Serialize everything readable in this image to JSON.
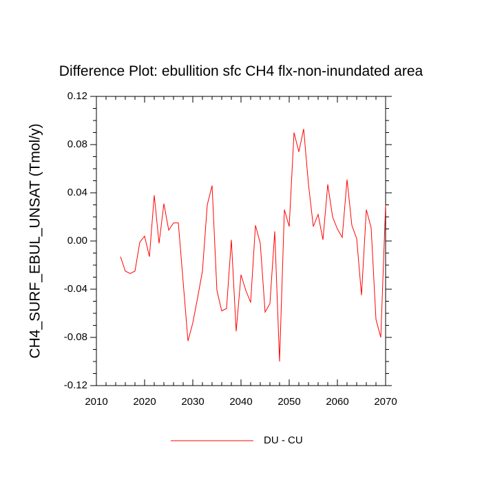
{
  "chart_data": {
    "type": "line",
    "title": "Difference Plot: ebullition sfc CH4 flx-non-inundated area",
    "xlabel": "",
    "ylabel": "CH4_SURF_EBUL_UNSAT  (Tmol/y)",
    "xlim": [
      2010,
      2070
    ],
    "ylim": [
      -0.12,
      0.12
    ],
    "x_ticks": [
      2010,
      2020,
      2030,
      2040,
      2050,
      2060,
      2070
    ],
    "x_tick_labels": [
      "2010",
      "2020",
      "2030",
      "2040",
      "2050",
      "2060",
      "2070"
    ],
    "y_ticks": [
      -0.12,
      -0.08,
      -0.04,
      0.0,
      0.04,
      0.08,
      0.12
    ],
    "y_tick_labels": [
      "-0.12",
      "-0.08",
      "-0.04",
      "0.00",
      "0.04",
      "0.08",
      "0.12"
    ],
    "x_minor_step": 2,
    "y_minor_step": 0.01,
    "legend_position": "bottom-center",
    "series": [
      {
        "name": "DU - CU",
        "color": "#ff0000",
        "x": [
          2015,
          2016,
          2017,
          2018,
          2019,
          2020,
          2021,
          2022,
          2023,
          2024,
          2025,
          2026,
          2027,
          2028,
          2029,
          2030,
          2031,
          2032,
          2033,
          2034,
          2035,
          2036,
          2037,
          2038,
          2039,
          2040,
          2041,
          2042,
          2043,
          2044,
          2045,
          2046,
          2047,
          2048,
          2049,
          2050,
          2051,
          2052,
          2053,
          2054,
          2055,
          2056,
          2057,
          2058,
          2059,
          2060,
          2061,
          2062,
          2063,
          2064,
          2065,
          2066,
          2067,
          2068,
          2069,
          2070
        ],
        "values": [
          -0.013,
          -0.025,
          -0.027,
          -0.025,
          -0.001,
          0.004,
          -0.013,
          0.038,
          -0.002,
          0.031,
          0.009,
          0.015,
          0.015,
          -0.034,
          -0.083,
          -0.068,
          -0.047,
          -0.025,
          0.03,
          0.046,
          -0.041,
          -0.058,
          -0.056,
          0.001,
          -0.075,
          -0.028,
          -0.041,
          -0.051,
          0.013,
          -0.002,
          -0.059,
          -0.052,
          0.008,
          -0.1,
          0.026,
          0.012,
          0.09,
          0.074,
          0.093,
          0.047,
          0.012,
          0.022,
          0.001,
          0.047,
          0.02,
          0.01,
          0.003,
          0.051,
          0.013,
          0.002,
          -0.045,
          0.026,
          0.011,
          -0.065,
          -0.08,
          0.03
        ]
      }
    ]
  }
}
